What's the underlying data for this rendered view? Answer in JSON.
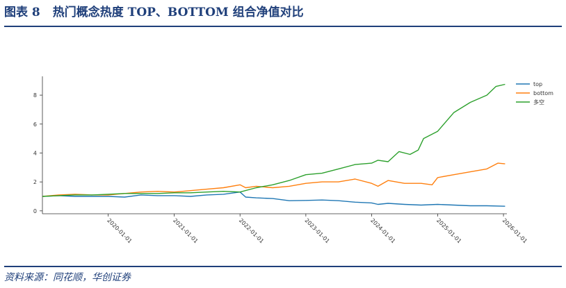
{
  "header": {
    "figure_label": "图表 8",
    "title": "热门概念热度 TOP、BOTTOM 组合净值对比"
  },
  "footer": {
    "source": "资料来源：同花顺，华创证券"
  },
  "colors": {
    "accent": "#1f3f7a",
    "top": "#1f77b4",
    "bottom": "#ff7f0e",
    "long_short": "#2ca02c"
  },
  "chart_data": {
    "type": "line",
    "title": "",
    "xlabel": "",
    "ylabel": "",
    "x_ticks": [
      "2020-01-01",
      "2021-01-01",
      "2022-01-01",
      "2023-01-01",
      "2024-01-01",
      "2025-01-01",
      "2026-01-01"
    ],
    "y_ticks": [
      0,
      2,
      4,
      6,
      8
    ],
    "xlim": [
      "2019-01-01",
      "2026-01-20"
    ],
    "ylim": [
      -0.2,
      9.3
    ],
    "grid": false,
    "legend": "top-right",
    "series": [
      {
        "name": "top",
        "color": "#1f77b4",
        "x": [
          "2019-01-01",
          "2019-04-01",
          "2019-07-01",
          "2019-10-01",
          "2020-01-01",
          "2020-04-01",
          "2020-07-01",
          "2020-10-01",
          "2021-01-01",
          "2021-04-01",
          "2021-07-01",
          "2021-10-01",
          "2022-01-01",
          "2022-02-01",
          "2022-04-01",
          "2022-07-01",
          "2022-10-01",
          "2023-01-01",
          "2023-04-01",
          "2023-07-01",
          "2023-10-01",
          "2024-01-01",
          "2024-02-05",
          "2024-04-01",
          "2024-07-01",
          "2024-10-01",
          "2025-01-01",
          "2025-04-01",
          "2025-07-01",
          "2025-10-01",
          "2026-01-10"
        ],
        "y": [
          1.0,
          1.05,
          1.0,
          1.0,
          1.0,
          0.95,
          1.1,
          1.05,
          1.05,
          1.0,
          1.1,
          1.15,
          1.3,
          0.95,
          0.9,
          0.85,
          0.7,
          0.72,
          0.75,
          0.7,
          0.6,
          0.55,
          0.45,
          0.52,
          0.45,
          0.4,
          0.45,
          0.4,
          0.35,
          0.35,
          0.32
        ]
      },
      {
        "name": "bottom",
        "color": "#ff7f0e",
        "x": [
          "2019-01-01",
          "2019-04-01",
          "2019-07-01",
          "2019-10-01",
          "2020-01-01",
          "2020-04-01",
          "2020-07-01",
          "2020-10-01",
          "2021-01-01",
          "2021-04-01",
          "2021-07-01",
          "2021-10-01",
          "2022-01-01",
          "2022-02-01",
          "2022-04-01",
          "2022-07-01",
          "2022-10-01",
          "2023-01-01",
          "2023-04-01",
          "2023-07-01",
          "2023-10-01",
          "2024-01-01",
          "2024-02-05",
          "2024-04-01",
          "2024-07-01",
          "2024-10-01",
          "2024-12-01",
          "2025-01-01",
          "2025-04-01",
          "2025-07-01",
          "2025-10-01",
          "2025-12-01",
          "2026-01-10"
        ],
        "y": [
          1.0,
          1.1,
          1.15,
          1.1,
          1.1,
          1.2,
          1.3,
          1.35,
          1.3,
          1.4,
          1.5,
          1.6,
          1.8,
          1.6,
          1.7,
          1.6,
          1.7,
          1.9,
          2.0,
          2.0,
          2.2,
          1.9,
          1.7,
          2.1,
          1.9,
          1.9,
          1.8,
          2.3,
          2.5,
          2.7,
          2.9,
          3.3,
          3.25
        ]
      },
      {
        "name": "多空",
        "color": "#2ca02c",
        "x": [
          "2019-01-01",
          "2019-04-01",
          "2019-07-01",
          "2019-10-01",
          "2020-01-01",
          "2020-04-01",
          "2020-07-01",
          "2020-10-01",
          "2021-01-01",
          "2021-04-01",
          "2021-07-01",
          "2021-10-01",
          "2022-01-01",
          "2022-04-01",
          "2022-07-01",
          "2022-10-01",
          "2023-01-01",
          "2023-04-01",
          "2023-07-01",
          "2023-10-01",
          "2024-01-01",
          "2024-02-05",
          "2024-04-01",
          "2024-06-01",
          "2024-08-01",
          "2024-09-15",
          "2024-10-15",
          "2025-01-01",
          "2025-04-01",
          "2025-07-01",
          "2025-10-01",
          "2025-11-20",
          "2026-01-10"
        ],
        "y": [
          1.0,
          1.05,
          1.1,
          1.1,
          1.15,
          1.2,
          1.2,
          1.2,
          1.25,
          1.25,
          1.3,
          1.35,
          1.3,
          1.6,
          1.8,
          2.1,
          2.5,
          2.6,
          2.9,
          3.2,
          3.3,
          3.5,
          3.4,
          4.1,
          3.9,
          4.2,
          5.0,
          5.5,
          6.8,
          7.5,
          8.0,
          8.6,
          8.75
        ]
      }
    ]
  }
}
